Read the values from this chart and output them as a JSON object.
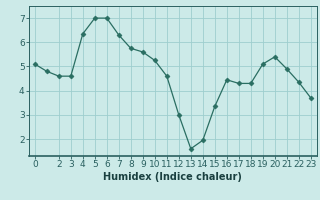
{
  "x": [
    0,
    1,
    2,
    3,
    4,
    5,
    6,
    7,
    8,
    9,
    10,
    11,
    12,
    13,
    14,
    15,
    16,
    17,
    18,
    19,
    20,
    21,
    22,
    23
  ],
  "y": [
    5.1,
    4.8,
    4.6,
    4.6,
    6.35,
    7.0,
    7.0,
    6.3,
    5.75,
    5.6,
    5.25,
    4.6,
    3.0,
    1.6,
    1.95,
    3.35,
    4.45,
    4.3,
    4.3,
    5.1,
    5.4,
    4.9,
    4.35,
    3.7
  ],
  "xlim": [
    -0.5,
    23.5
  ],
  "ylim": [
    1.3,
    7.5
  ],
  "yticks": [
    2,
    3,
    4,
    5,
    6,
    7
  ],
  "xticks": [
    0,
    2,
    3,
    4,
    5,
    6,
    7,
    8,
    9,
    10,
    11,
    12,
    13,
    14,
    15,
    16,
    17,
    18,
    19,
    20,
    21,
    22,
    23
  ],
  "xlabel": "Humidex (Indice chaleur)",
  "line_color": "#2a6e62",
  "marker": "D",
  "marker_size": 2.5,
  "bg_color": "#cceae8",
  "grid_color": "#9ecece",
  "spine_color": "#2a6060",
  "label_color": "#1a4040",
  "xlabel_fontsize": 7,
  "tick_fontsize": 6.5
}
